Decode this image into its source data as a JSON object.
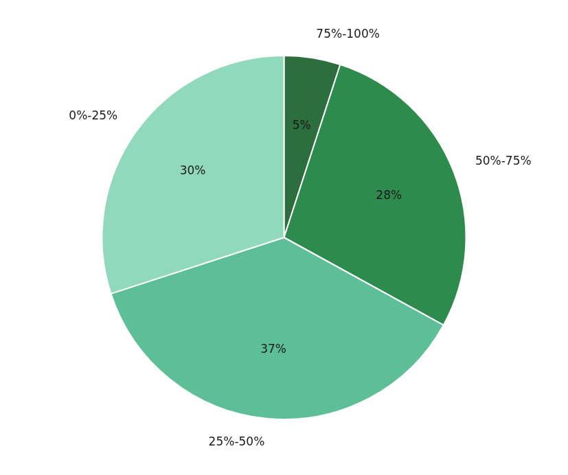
{
  "chart_data": {
    "type": "pie",
    "categories": [
      "75%-100%",
      "50%-75%",
      "25%-50%",
      "0%-25%"
    ],
    "values": [
      5,
      28,
      37,
      30
    ],
    "value_labels": [
      "5%",
      "28%",
      "37%",
      "30%"
    ],
    "colors": [
      "#2d6e3e",
      "#2e8b4e",
      "#5dbf97",
      "#90d9bc"
    ],
    "data_labels": true
  }
}
